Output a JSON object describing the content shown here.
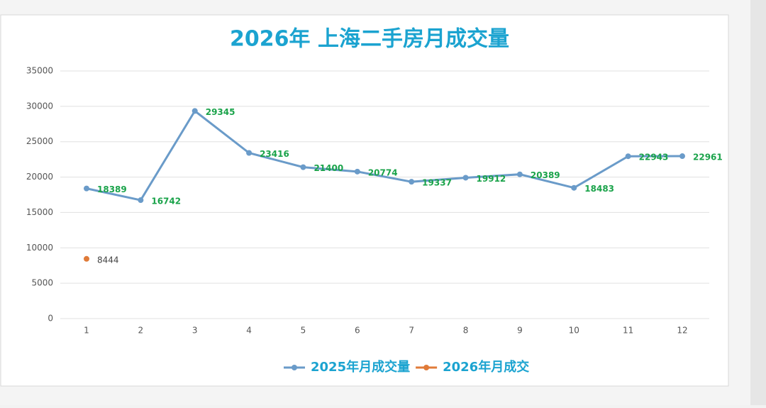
{
  "chart_data": {
    "type": "line",
    "title": "2026年 上海二手房月成交量",
    "categories": [
      "1",
      "2",
      "3",
      "4",
      "5",
      "6",
      "7",
      "8",
      "9",
      "10",
      "11",
      "12"
    ],
    "series": [
      {
        "name": "2025年月成交量",
        "color": "#6a9bc9",
        "label_color": "#1aa34a",
        "values": [
          18389,
          16742,
          29345,
          23416,
          21400,
          20774,
          19337,
          19912,
          20389,
          18483,
          22943,
          22961
        ]
      },
      {
        "name": "2026年月成交",
        "color": "#e07b39",
        "label_color": "#444444",
        "values": [
          8444,
          null,
          null,
          null,
          null,
          null,
          null,
          null,
          null,
          null,
          null,
          null
        ]
      }
    ],
    "ylim": [
      0,
      35000
    ],
    "yticks": [
      0,
      5000,
      10000,
      15000,
      20000,
      25000,
      30000,
      35000
    ],
    "grid": true,
    "legend": "bottom"
  }
}
